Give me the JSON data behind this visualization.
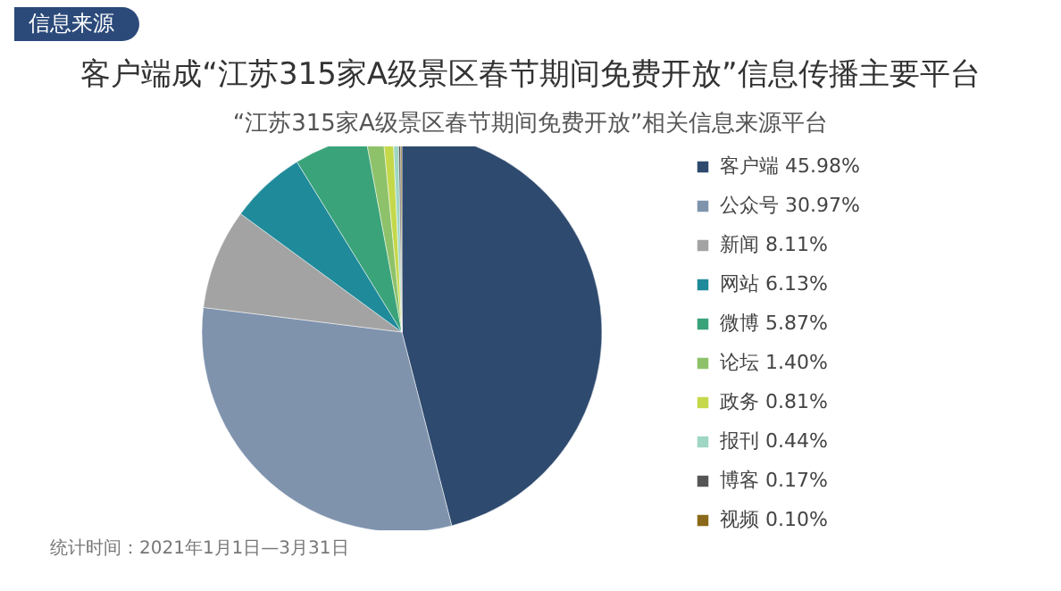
{
  "chart_data": {
    "type": "pie",
    "title": "客户端成“江苏315家A级景区春节期间免费开放”信息传播主要平台",
    "subtitle": "“江苏315家A级景区春节期间免费开放”相关信息来源平台",
    "categories": [
      "客户端",
      "公众号",
      "新闻",
      "网站",
      "微博",
      "论坛",
      "政务",
      "报刊",
      "博客",
      "视频"
    ],
    "values": [
      45.98,
      30.97,
      8.11,
      6.13,
      5.87,
      1.4,
      0.81,
      0.44,
      0.17,
      0.1
    ],
    "value_labels": [
      "45.98%",
      "30.97%",
      "8.11%",
      "6.13%",
      "5.87%",
      "1.40%",
      "0.81%",
      "0.44%",
      "0.17%",
      "0.10%"
    ],
    "colors": [
      "#2e4a6e",
      "#7f93ad",
      "#a3a3a3",
      "#1f8a9a",
      "#3aa37a",
      "#8dc26a",
      "#c5d84a",
      "#9fd6c4",
      "#555555",
      "#8a6a1a"
    ],
    "legend": "right",
    "annotations": [
      "信息来源",
      "统计时间：2021年1月1日—3月31日"
    ]
  }
}
